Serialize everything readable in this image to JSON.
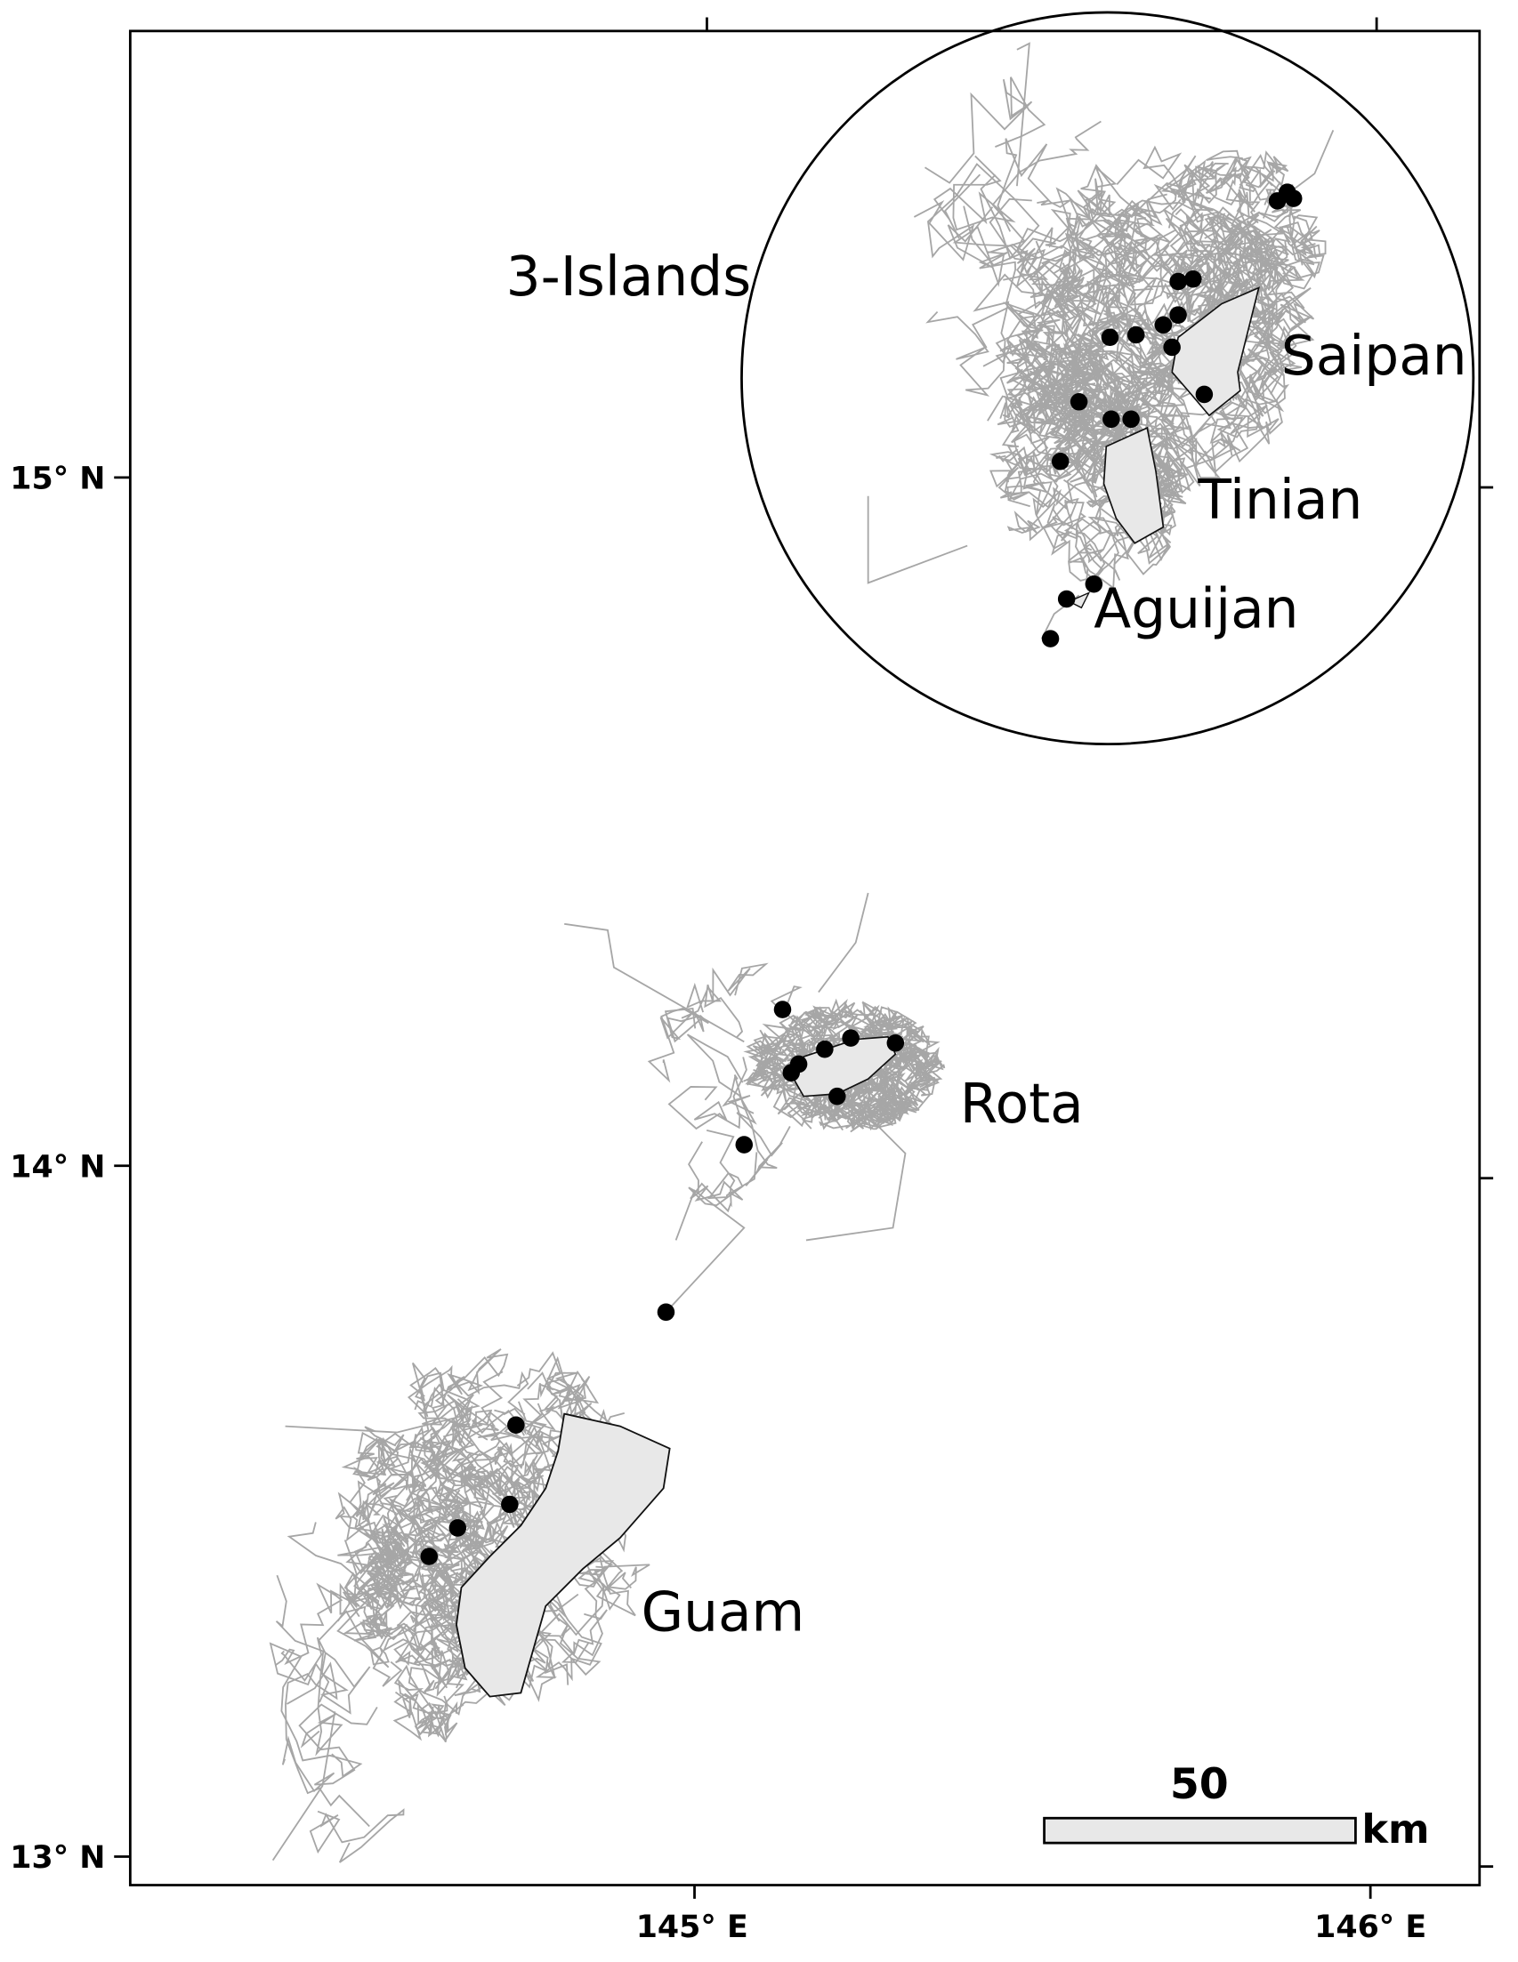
{
  "axes": {
    "lat_labels": [
      "15° N",
      "14° N",
      "13° N"
    ],
    "lon_labels": [
      "145° E",
      "146° E"
    ]
  },
  "labels": {
    "three_islands": "3-Islands",
    "saipan": "Saipan",
    "tinian": "Tinian",
    "aguijan": "Aguijan",
    "rota": "Rota",
    "guam": "Guam"
  },
  "scale_bar": {
    "value": 50,
    "unit": "km"
  }
}
